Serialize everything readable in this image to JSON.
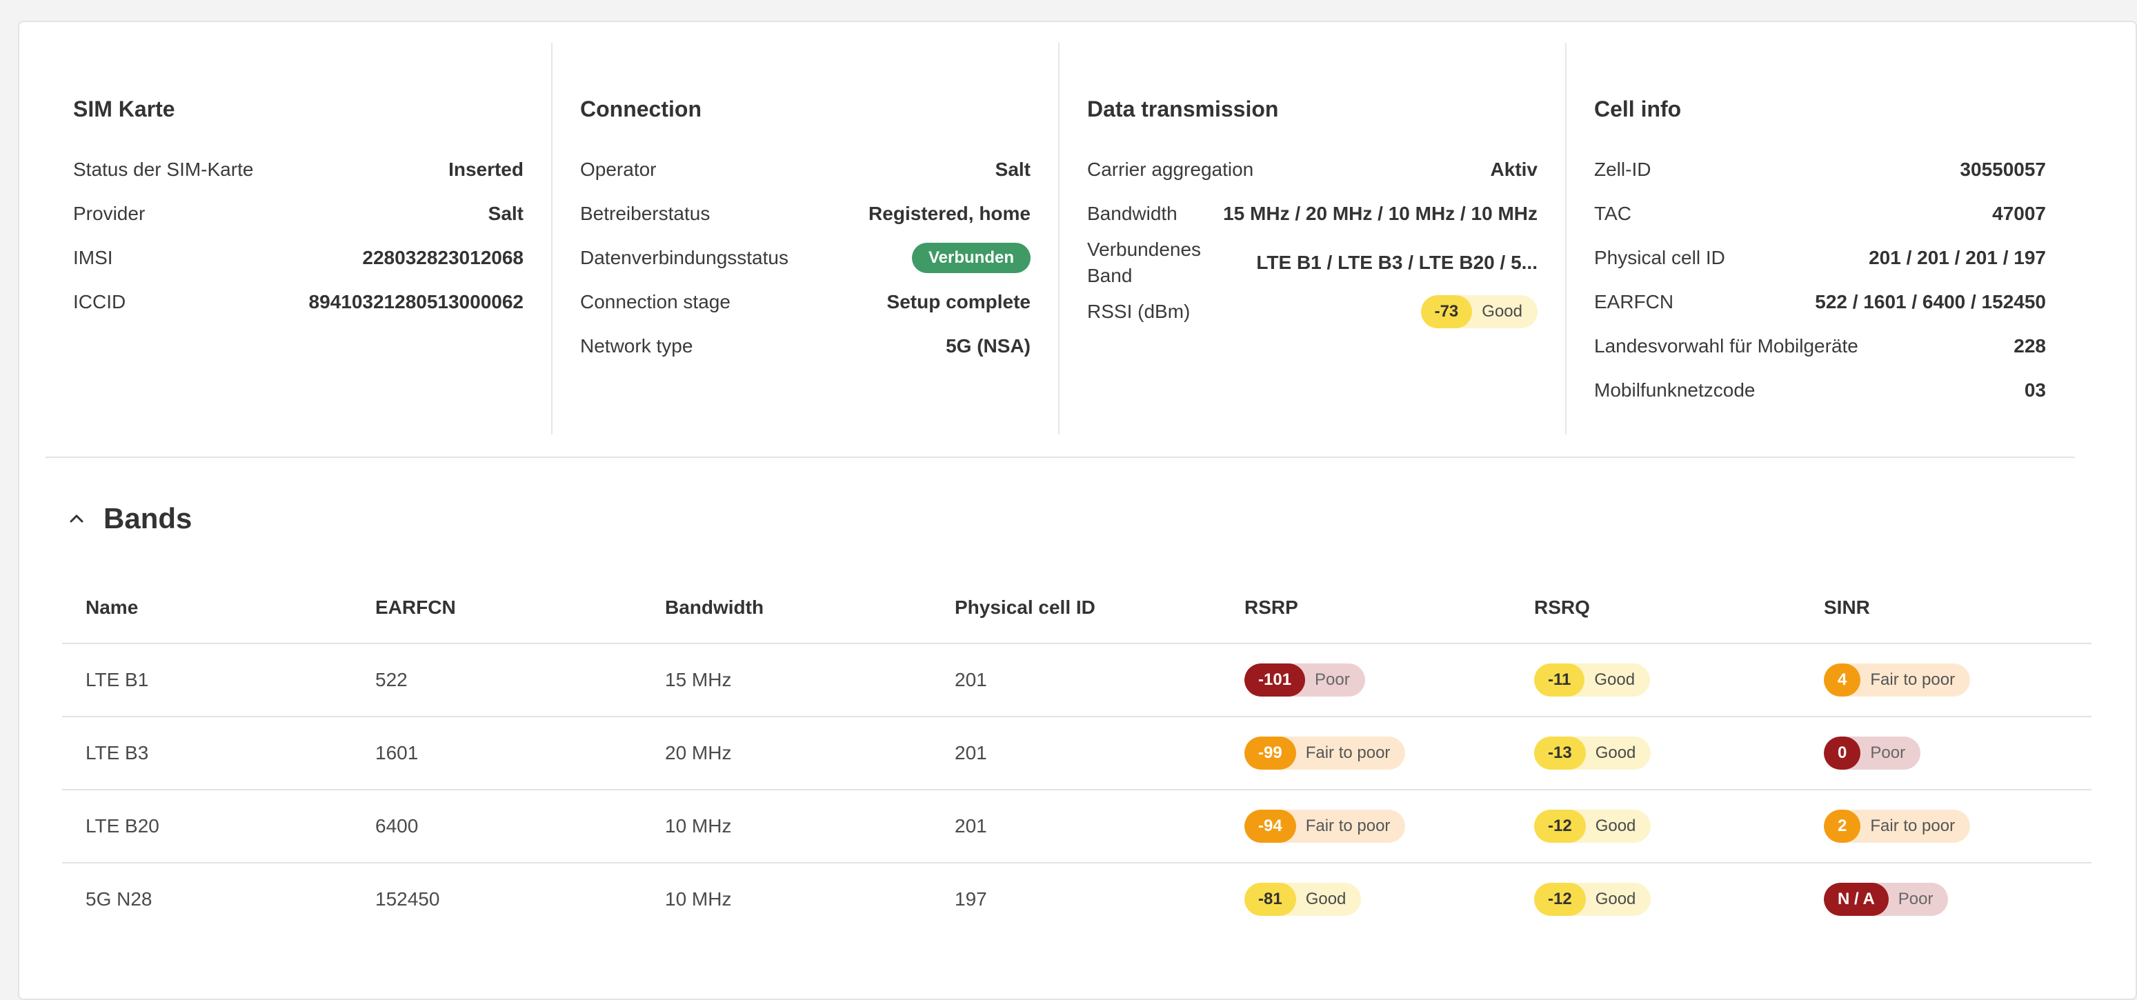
{
  "sim": {
    "title": "SIM Karte",
    "rows": [
      {
        "label": "Status der SIM-Karte",
        "value": "Inserted"
      },
      {
        "label": "Provider",
        "value": "Salt"
      },
      {
        "label": "IMSI",
        "value": "228032823012068"
      },
      {
        "label": "ICCID",
        "value": "89410321280513000062"
      }
    ]
  },
  "connection": {
    "title": "Connection",
    "rows": [
      {
        "label": "Operator",
        "value": "Salt"
      },
      {
        "label": "Betreiberstatus",
        "value": "Registered, home"
      },
      {
        "label": "Datenverbindungsstatus",
        "value": "Verbunden"
      },
      {
        "label": "Connection stage",
        "value": "Setup complete"
      },
      {
        "label": "Network type",
        "value": "5G (NSA)"
      }
    ]
  },
  "data_transmission": {
    "title": "Data transmission",
    "rows": [
      {
        "label": "Carrier aggregation",
        "value": "Aktiv"
      },
      {
        "label": "Bandwidth",
        "value": "15 MHz / 20 MHz / 10 MHz / 10 MHz"
      },
      {
        "label": "Verbundenes Band",
        "value": "LTE B1 / LTE B3 / LTE B20 / 5..."
      },
      {
        "label": "RSSI (dBm)",
        "value": "-73",
        "quality": "Good"
      }
    ]
  },
  "cell_info": {
    "title": "Cell info",
    "rows": [
      {
        "label": "Zell-ID",
        "value": "30550057"
      },
      {
        "label": "TAC",
        "value": "47007"
      },
      {
        "label": "Physical cell ID",
        "value": "201 / 201 / 201 / 197"
      },
      {
        "label": "EARFCN",
        "value": "522 / 1601 / 6400 / 152450"
      },
      {
        "label": "Landesvorwahl für Mobilgeräte",
        "value": "228"
      },
      {
        "label": "Mobilfunknetzcode",
        "value": "03"
      }
    ]
  },
  "bands": {
    "title": "Bands",
    "columns": [
      "Name",
      "EARFCN",
      "Bandwidth",
      "Physical cell ID",
      "RSRP",
      "RSRQ",
      "SINR"
    ],
    "rows": [
      {
        "name": "LTE B1",
        "earfcn": "522",
        "bandwidth": "15 MHz",
        "pci": "201",
        "rsrp": {
          "value": "-101",
          "label": "Poor",
          "level": "poor"
        },
        "rsrq": {
          "value": "-11",
          "label": "Good",
          "level": "good"
        },
        "sinr": {
          "value": "4",
          "label": "Fair to poor",
          "level": "fair"
        }
      },
      {
        "name": "LTE B3",
        "earfcn": "1601",
        "bandwidth": "20 MHz",
        "pci": "201",
        "rsrp": {
          "value": "-99",
          "label": "Fair to poor",
          "level": "fair"
        },
        "rsrq": {
          "value": "-13",
          "label": "Good",
          "level": "good"
        },
        "sinr": {
          "value": "0",
          "label": "Poor",
          "level": "poor"
        }
      },
      {
        "name": "LTE B20",
        "earfcn": "6400",
        "bandwidth": "10 MHz",
        "pci": "201",
        "rsrp": {
          "value": "-94",
          "label": "Fair to poor",
          "level": "fair"
        },
        "rsrq": {
          "value": "-12",
          "label": "Good",
          "level": "good"
        },
        "sinr": {
          "value": "2",
          "label": "Fair to poor",
          "level": "fair"
        }
      },
      {
        "name": "5G N28",
        "earfcn": "152450",
        "bandwidth": "10 MHz",
        "pci": "197",
        "rsrp": {
          "value": "-81",
          "label": "Good",
          "level": "good"
        },
        "rsrq": {
          "value": "-12",
          "label": "Good",
          "level": "good"
        },
        "sinr": {
          "value": "N / A",
          "label": "Poor",
          "level": "poor"
        }
      }
    ]
  },
  "colors": {
    "good_badge": "#f9dc4a",
    "fair_badge": "#f39c12",
    "poor_badge": "#9b1a1d",
    "connected_pill": "#3f9a65"
  },
  "icons": {
    "collapse": "chevron-up-icon"
  }
}
